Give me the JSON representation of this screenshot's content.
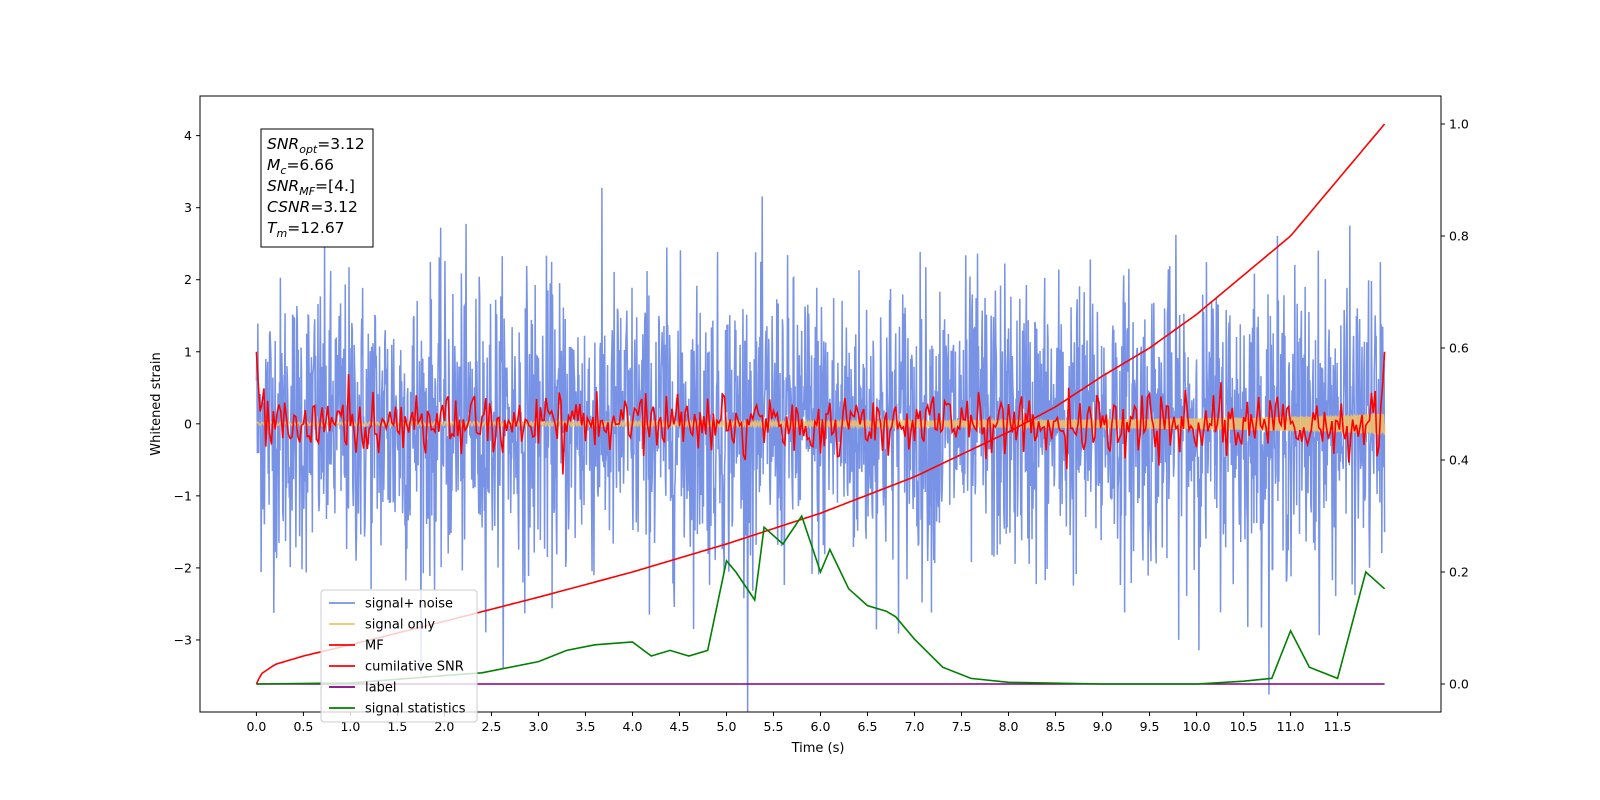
{
  "chart_data": {
    "type": "line",
    "xlabel": "Time (s)",
    "ylabel": "Whitened strain",
    "xlim": [
      -0.6,
      12.6
    ],
    "ylim_left": [
      -4.0,
      4.55
    ],
    "ylim_right": [
      -0.05,
      1.05
    ],
    "x_ticks": [
      "0.0",
      "0.5",
      "1.0",
      "1.5",
      "2.0",
      "2.5",
      "3.0",
      "3.5",
      "4.0",
      "4.5",
      "5.0",
      "5.5",
      "6.0",
      "6.5",
      "7.0",
      "7.5",
      "8.0",
      "8.5",
      "9.0",
      "9.5",
      "10.0",
      "10.5",
      "11.0",
      "11.5"
    ],
    "y_ticks_left": [
      "4",
      "3",
      "2",
      "1",
      "0",
      "−1",
      "−2",
      "−3"
    ],
    "y_ticks_right": [
      "1.0",
      "0.8",
      "0.6",
      "0.4",
      "0.2",
      "0.0"
    ],
    "grid": false,
    "legend_position": "lower-left",
    "annotation": {
      "lines": [
        {
          "sym": "SNR",
          "sub": "opt",
          "value": "=3.12"
        },
        {
          "sym": "M",
          "sub": "c",
          "value": "=6.66"
        },
        {
          "sym": "SNR",
          "sub": "MF",
          "value": "=[4.]"
        },
        {
          "sym": "CSNR",
          "sub": "",
          "value": "=3.12"
        },
        {
          "sym": "T",
          "sub": "m",
          "value": "=12.67"
        }
      ]
    },
    "series": [
      {
        "name": "signal+ noise",
        "color": "#7893e6",
        "axis": "left",
        "description_values": {
          "mean": 0.0,
          "std": 1.0,
          "x_range": [
            0.0,
            12.0
          ]
        }
      },
      {
        "name": "signal only",
        "color": "#f5c266",
        "axis": "left",
        "x": [
          0.0,
          3.0,
          6.0,
          9.0,
          10.5,
          11.5,
          12.0
        ],
        "amplitude": [
          0.02,
          0.03,
          0.04,
          0.06,
          0.09,
          0.12,
          0.15
        ]
      },
      {
        "name": "MF",
        "color": "#ff0000",
        "axis": "left",
        "x": [
          0.0,
          0.05,
          0.2,
          0.5,
          1.0,
          1.5,
          2.0,
          2.5,
          3.0,
          3.5,
          4.0,
          4.5,
          5.0,
          5.5,
          6.0,
          6.5,
          7.0,
          7.5,
          8.0,
          8.5,
          9.0,
          9.5,
          10.0,
          10.5,
          11.0,
          11.5,
          11.95,
          12.0
        ],
        "y_shape": "noisy around 0, std ~0.2, starts at 1.0 and ends at 1.0",
        "y": [
          1.0,
          0.8,
          -0.1,
          0.2,
          0.4,
          -0.3,
          0.1,
          0.2,
          -0.3,
          0.6,
          -0.3,
          0.2,
          0.3,
          -0.4,
          0.0,
          0.3,
          0.1,
          -0.2,
          0.3,
          -0.1,
          0.2,
          -0.3,
          0.4,
          -0.1,
          0.3,
          0.5,
          -0.3,
          1.0
        ]
      },
      {
        "name": "cumilative SNR",
        "color": "#ff0000",
        "axis": "right",
        "x": [
          0.0,
          0.05,
          0.2,
          0.5,
          1.0,
          2.0,
          3.0,
          4.0,
          5.0,
          6.0,
          7.0,
          8.0,
          8.5,
          9.0,
          9.5,
          10.0,
          10.5,
          11.0,
          11.5,
          12.0
        ],
        "values": [
          0.0,
          0.018,
          0.035,
          0.05,
          0.07,
          0.112,
          0.155,
          0.2,
          0.25,
          0.305,
          0.37,
          0.45,
          0.495,
          0.55,
          0.6,
          0.66,
          0.73,
          0.8,
          0.9,
          1.0
        ]
      },
      {
        "name": "label",
        "color": "#800080",
        "axis": "right",
        "x": [
          0.0,
          12.0
        ],
        "values": [
          0.0,
          0.0
        ]
      },
      {
        "name": "signal statistics",
        "color": "#008000",
        "axis": "right",
        "x": [
          0.0,
          1.0,
          2.0,
          2.4,
          3.0,
          3.3,
          3.6,
          4.0,
          4.2,
          4.4,
          4.6,
          4.8,
          5.0,
          5.1,
          5.3,
          5.4,
          5.6,
          5.8,
          6.0,
          6.1,
          6.3,
          6.5,
          6.7,
          6.8,
          7.0,
          7.3,
          7.6,
          8.0,
          9.0,
          10.0,
          10.5,
          10.8,
          11.0,
          11.2,
          11.5,
          11.8,
          12.0
        ],
        "values": [
          0.0,
          0.002,
          0.015,
          0.02,
          0.04,
          0.06,
          0.07,
          0.075,
          0.05,
          0.06,
          0.05,
          0.06,
          0.22,
          0.2,
          0.15,
          0.28,
          0.25,
          0.3,
          0.2,
          0.24,
          0.17,
          0.14,
          0.13,
          0.12,
          0.08,
          0.03,
          0.01,
          0.003,
          0.0,
          0.0,
          0.005,
          0.01,
          0.095,
          0.03,
          0.01,
          0.2,
          0.17
        ]
      }
    ]
  }
}
